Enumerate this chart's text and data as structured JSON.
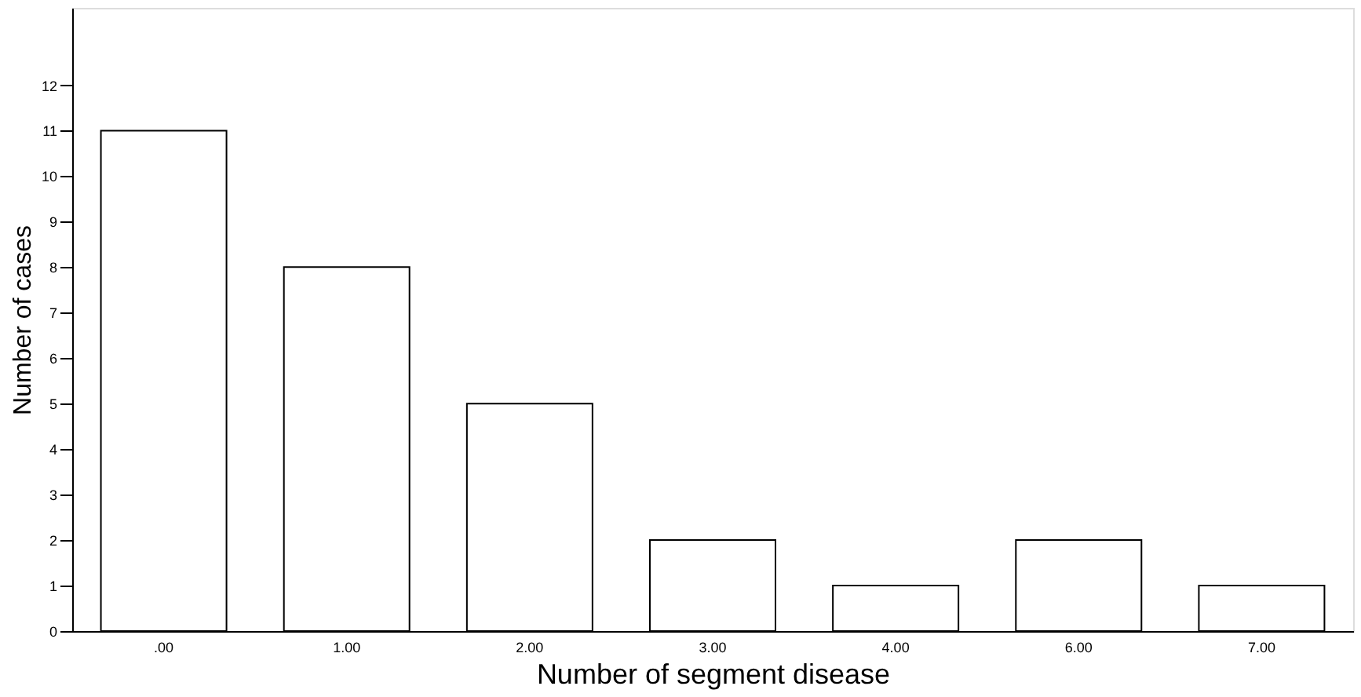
{
  "chart_data": {
    "type": "bar",
    "xlabel": "Number of segment disease",
    "ylabel": "Number of cases",
    "categories": [
      ".00",
      "1.00",
      "2.00",
      "3.00",
      "4.00",
      "6.00",
      "7.00"
    ],
    "values": [
      11,
      8,
      5,
      2,
      1,
      2,
      1
    ],
    "color": "#ffffff",
    "ylim": [
      0,
      13.7
    ],
    "yticks": [
      0,
      1,
      2,
      3,
      4,
      5,
      6,
      7,
      8,
      9,
      10,
      11,
      12
    ],
    "grid": false
  }
}
